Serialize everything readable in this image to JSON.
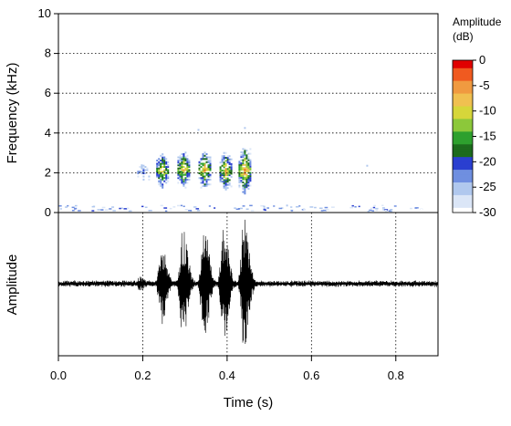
{
  "chart_data": [
    {
      "type": "heatmap",
      "title": "",
      "xlabel": "",
      "ylabel": "Frequency (kHz)",
      "xlim": [
        0,
        0.9
      ],
      "ylim": [
        0,
        10
      ],
      "y_ticks": [
        "0",
        "2",
        "4",
        "6",
        "8",
        "10"
      ],
      "grid": "dotted horizontal at 2, 4, 6, 8 kHz",
      "colorbar": {
        "title_line1": "Amplitude",
        "title_line2": "(dB)",
        "range": [
          -30,
          0
        ],
        "ticks": [
          "0",
          "-5",
          "-10",
          "-15",
          "-20",
          "-25",
          "-30"
        ],
        "colors": [
          "#ffffff",
          "#dbe6f7",
          "#b0c8ee",
          "#6f8fe0",
          "#2a3fd0",
          "#1d6b1d",
          "#2ea02e",
          "#8cc83a",
          "#d6d63a",
          "#f0c050",
          "#f09a40",
          "#f05a20",
          "#e00000"
        ]
      },
      "calls": [
        {
          "t": 0.2,
          "f_low": 1.7,
          "f_high": 2.5,
          "peak_db": -22
        },
        {
          "t": 0.245,
          "f_low": 1.3,
          "f_high": 3.0,
          "peak_db": -8
        },
        {
          "t": 0.295,
          "f_low": 1.3,
          "f_high": 3.1,
          "peak_db": -5
        },
        {
          "t": 0.345,
          "f_low": 1.3,
          "f_high": 3.1,
          "peak_db": -5
        },
        {
          "t": 0.395,
          "f_low": 1.2,
          "f_high": 3.1,
          "peak_db": -6
        },
        {
          "t": 0.44,
          "f_low": 1.0,
          "f_high": 3.3,
          "peak_db": -3
        }
      ],
      "noise_band_khz": [
        0,
        0.3
      ]
    },
    {
      "type": "line",
      "title": "",
      "xlabel": "Time (s)",
      "ylabel": "Amplitude",
      "xlim": [
        0,
        0.9
      ],
      "ylim": [
        -1,
        1
      ],
      "x_ticks": [
        "0.0",
        "0.2",
        "0.4",
        "0.6",
        "0.8"
      ],
      "grid": "dotted vertical at 0.2, 0.4, 0.6, 0.8 s",
      "noise_level": 0.05,
      "pulses": [
        {
          "t": 0.193,
          "amplitude": 0.1
        },
        {
          "t": 0.245,
          "amplitude": 0.58
        },
        {
          "t": 0.295,
          "amplitude": 0.82
        },
        {
          "t": 0.345,
          "amplitude": 0.88
        },
        {
          "t": 0.392,
          "amplitude": 0.82
        },
        {
          "t": 0.44,
          "amplitude": 0.95
        }
      ]
    }
  ]
}
